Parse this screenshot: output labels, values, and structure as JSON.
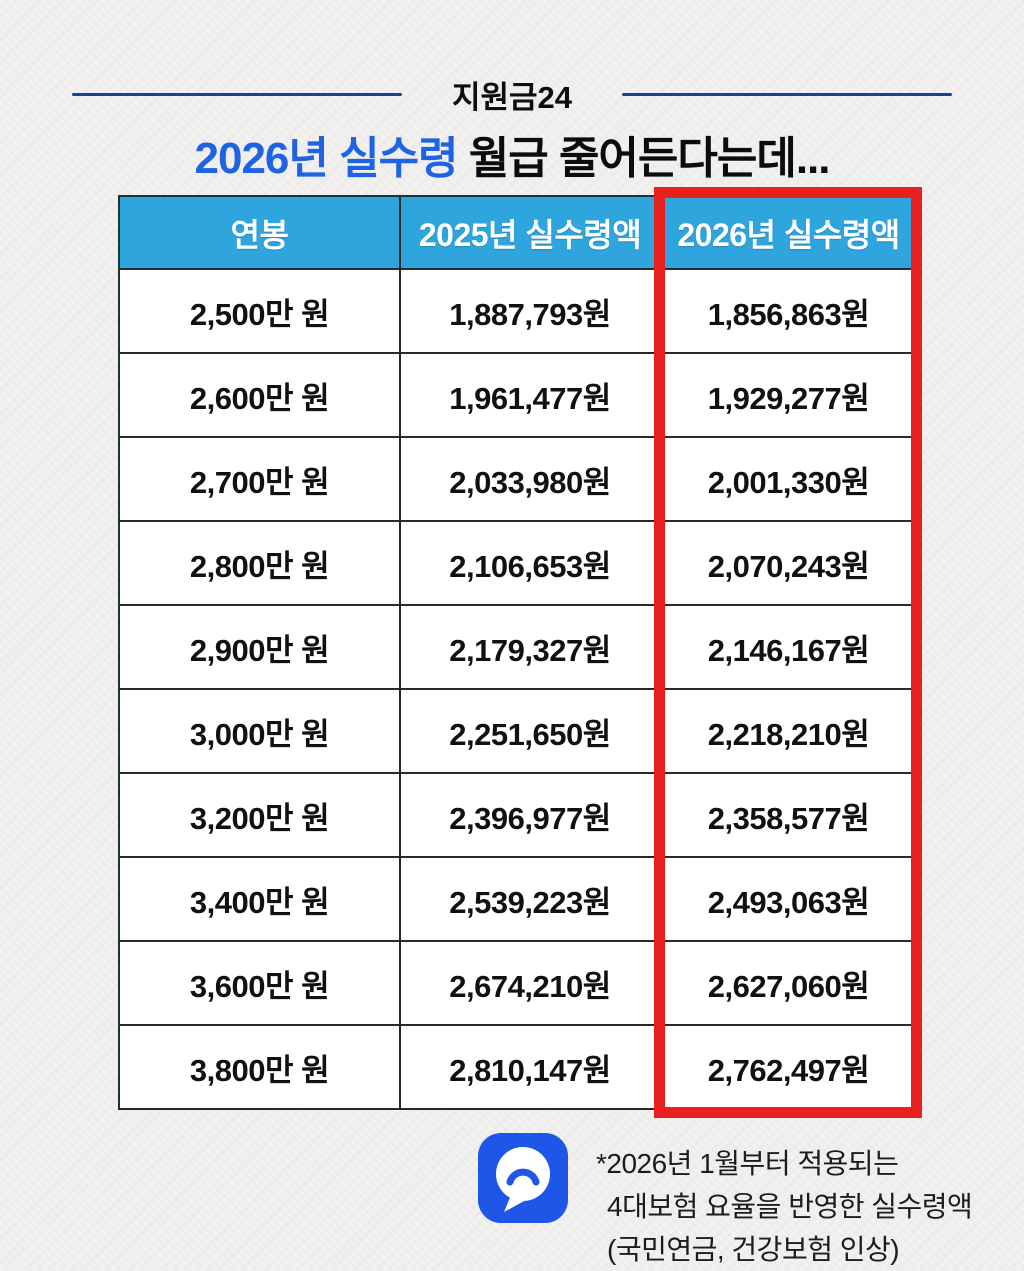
{
  "page": {
    "background_color": "#f2f1ef"
  },
  "header": {
    "brand": "지원금24",
    "rule_color": "#1b3f93"
  },
  "title": {
    "highlight": "2026년 실수령",
    "rest": " 월급 줄어든다는데...",
    "highlight_color": "#1e63e3"
  },
  "table": {
    "header": {
      "col_salary": "연봉",
      "col_2025": "2025년 실수령액",
      "col_2026": "2026년 실수령액"
    },
    "header_bg_color": "#2fa5de",
    "highlight_border_color": "#e8201e",
    "rows": [
      {
        "salary": "2,500만 원",
        "net_2025": "1,887,793원",
        "net_2026": "1,856,863원"
      },
      {
        "salary": "2,600만 원",
        "net_2025": "1,961,477원",
        "net_2026": "1,929,277원"
      },
      {
        "salary": "2,700만 원",
        "net_2025": "2,033,980원",
        "net_2026": "2,001,330원"
      },
      {
        "salary": "2,800만 원",
        "net_2025": "2,106,653원",
        "net_2026": "2,070,243원"
      },
      {
        "salary": "2,900만 원",
        "net_2025": "2,179,327원",
        "net_2026": "2,146,167원"
      },
      {
        "salary": "3,000만 원",
        "net_2025": "2,251,650원",
        "net_2026": "2,218,210원"
      },
      {
        "salary": "3,200만 원",
        "net_2025": "2,396,977원",
        "net_2026": "2,358,577원"
      },
      {
        "salary": "3,400만 원",
        "net_2025": "2,539,223원",
        "net_2026": "2,493,063원"
      },
      {
        "salary": "3,600만 원",
        "net_2025": "2,674,210원",
        "net_2026": "2,627,060원"
      },
      {
        "salary": "3,800만 원",
        "net_2025": "2,810,147원",
        "net_2026": "2,762,497원"
      }
    ]
  },
  "footnote": {
    "icon": "chat-bubble-icon",
    "icon_color": "#1e56e8",
    "lines": [
      "*2026년 1월부터 적용되는",
      "4대보험 요율을 반영한 실수령액",
      "(국민연금, 건강보험 인상)"
    ]
  }
}
